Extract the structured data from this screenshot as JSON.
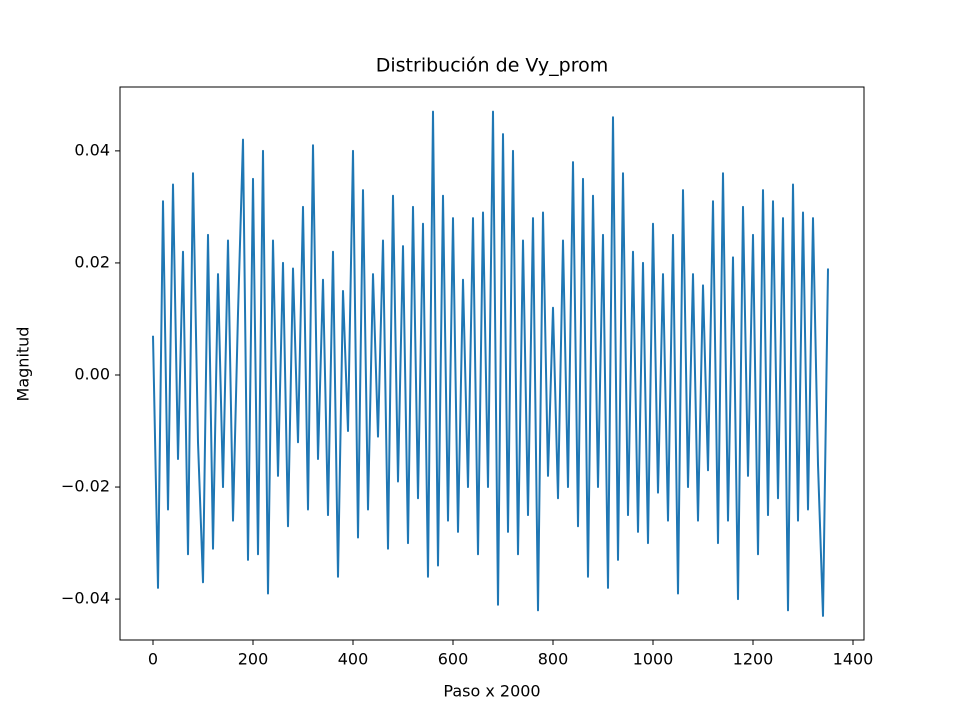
{
  "chart_data": {
    "type": "line",
    "title": "Distribución de Vy_prom",
    "xlabel": "Paso x 2000",
    "ylabel": "Magnitud",
    "x": [
      0,
      10,
      20,
      30,
      40,
      50,
      60,
      70,
      80,
      90,
      100,
      110,
      120,
      130,
      140,
      150,
      160,
      170,
      180,
      190,
      200,
      210,
      220,
      230,
      240,
      250,
      260,
      270,
      280,
      290,
      300,
      310,
      320,
      330,
      340,
      350,
      360,
      370,
      380,
      390,
      400,
      410,
      420,
      430,
      440,
      450,
      460,
      470,
      480,
      490,
      500,
      510,
      520,
      530,
      540,
      550,
      560,
      570,
      580,
      590,
      600,
      610,
      620,
      630,
      640,
      650,
      660,
      670,
      680,
      690,
      700,
      710,
      720,
      730,
      740,
      750,
      760,
      770,
      780,
      790,
      800,
      810,
      820,
      830,
      840,
      850,
      860,
      870,
      880,
      890,
      900,
      910,
      920,
      930,
      940,
      950,
      960,
      970,
      980,
      990,
      1000,
      1010,
      1020,
      1030,
      1040,
      1050,
      1060,
      1070,
      1080,
      1090,
      1100,
      1110,
      1120,
      1130,
      1140,
      1150,
      1160,
      1170,
      1180,
      1190,
      1200,
      1210,
      1220,
      1230,
      1240,
      1250,
      1260,
      1270,
      1280,
      1290,
      1300,
      1310,
      1320,
      1330,
      1340,
      1350
    ],
    "series": [
      {
        "name": "Vy_prom",
        "color": "#1f77b4",
        "values": [
          0.007,
          -0.038,
          0.031,
          -0.024,
          0.034,
          -0.015,
          0.022,
          -0.032,
          0.036,
          -0.012,
          -0.037,
          0.025,
          -0.031,
          0.018,
          -0.02,
          0.024,
          -0.026,
          0.011,
          0.042,
          -0.033,
          0.035,
          -0.032,
          0.04,
          -0.039,
          0.024,
          -0.018,
          0.02,
          -0.027,
          0.019,
          -0.012,
          0.03,
          -0.024,
          0.041,
          -0.015,
          0.017,
          -0.025,
          0.022,
          -0.036,
          0.015,
          -0.01,
          0.04,
          -0.029,
          0.033,
          -0.024,
          0.018,
          -0.011,
          0.024,
          -0.031,
          0.032,
          -0.019,
          0.023,
          -0.03,
          0.03,
          -0.022,
          0.027,
          -0.036,
          0.047,
          -0.034,
          0.032,
          -0.026,
          0.028,
          -0.028,
          0.017,
          -0.02,
          0.028,
          -0.032,
          0.029,
          -0.02,
          0.047,
          -0.041,
          0.043,
          -0.028,
          0.04,
          -0.032,
          0.024,
          -0.025,
          0.028,
          -0.042,
          0.029,
          -0.018,
          0.012,
          -0.022,
          0.024,
          -0.02,
          0.038,
          -0.027,
          0.035,
          -0.036,
          0.032,
          -0.02,
          0.025,
          -0.038,
          0.046,
          -0.033,
          0.036,
          -0.025,
          0.022,
          -0.028,
          0.02,
          -0.03,
          0.027,
          -0.021,
          0.018,
          -0.026,
          0.025,
          -0.039,
          0.033,
          -0.02,
          0.018,
          -0.026,
          0.016,
          -0.017,
          0.031,
          -0.03,
          0.036,
          -0.026,
          0.021,
          -0.04,
          0.03,
          -0.018,
          0.025,
          -0.032,
          0.033,
          -0.025,
          0.031,
          -0.022,
          0.028,
          -0.042,
          0.034,
          -0.026,
          0.029,
          -0.024,
          0.028,
          -0.016,
          -0.043,
          0.019
        ]
      }
    ],
    "xlim": [
      -66,
      1422
    ],
    "xticks": [
      0,
      200,
      400,
      600,
      800,
      1000,
      1200,
      1400
    ],
    "ylim": [
      -0.0473,
      0.0514
    ],
    "yticks": [
      {
        "value": -0.04,
        "label": "−0.04"
      },
      {
        "value": -0.02,
        "label": "−0.02"
      },
      {
        "value": 0,
        "label": "0.00"
      },
      {
        "value": 0.02,
        "label": "0.02"
      },
      {
        "value": 0.04,
        "label": "0.04"
      }
    ],
    "grid": false
  }
}
